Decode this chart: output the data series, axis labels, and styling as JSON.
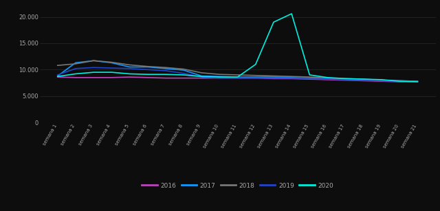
{
  "background_color": "#0d0d0d",
  "text_color": "#aaaaaa",
  "grid_color": "#2a2a2a",
  "weeks": [
    "semana 1",
    "semana 2",
    "semana 3",
    "semana 4",
    "semana 5",
    "semana 6",
    "semana 7",
    "semana 8",
    "semana 9",
    "semana 10",
    "semana 11",
    "semana 12",
    "semana 13",
    "semana 14",
    "semana 15",
    "semana 16",
    "semana 17",
    "semana 18",
    "semana 19",
    "semana 20",
    "semana 21"
  ],
  "series": {
    "2016": {
      "color": "#bb44bb",
      "data": [
        8600,
        8500,
        8500,
        8500,
        8600,
        8500,
        8400,
        8400,
        8400,
        8400,
        8400,
        8400,
        8300,
        8300,
        8200,
        8100,
        8000,
        7900,
        7800,
        7700,
        7700
      ]
    },
    "2017": {
      "color": "#1199ff",
      "data": [
        8800,
        11300,
        11700,
        11300,
        10500,
        10500,
        10200,
        9900,
        8800,
        8700,
        8600,
        8600,
        8600,
        8500,
        8400,
        8300,
        8200,
        8100,
        8000,
        7900,
        7800
      ]
    },
    "2018": {
      "color": "#777777",
      "data": [
        10800,
        11100,
        11700,
        11400,
        10900,
        10600,
        10400,
        10100,
        9400,
        9100,
        9000,
        8900,
        8800,
        8700,
        8600,
        8400,
        8300,
        8200,
        8000,
        7900,
        7800
      ]
    },
    "2019": {
      "color": "#2244cc",
      "data": [
        9000,
        10200,
        10400,
        10300,
        10200,
        10000,
        9800,
        9300,
        8600,
        8400,
        8400,
        8400,
        8400,
        8400,
        8300,
        8200,
        8100,
        8000,
        7900,
        7800,
        7700
      ]
    },
    "2020": {
      "color": "#00eedd",
      "data": [
        8700,
        9200,
        9500,
        9500,
        9200,
        9100,
        9100,
        9000,
        8700,
        8600,
        8600,
        11000,
        19000,
        20600,
        9000,
        8500,
        8300,
        8200,
        8100,
        7800,
        7700
      ]
    }
  },
  "ylim": [
    0,
    22000
  ],
  "yticks": [
    0,
    5000,
    10000,
    15000,
    20000
  ],
  "ytick_labels": [
    "0",
    "5.000",
    "10.000",
    "15.000",
    "20.000"
  ],
  "legend_order": [
    "2016",
    "2017",
    "2018",
    "2019",
    "2020"
  ],
  "linewidth": 1.2
}
